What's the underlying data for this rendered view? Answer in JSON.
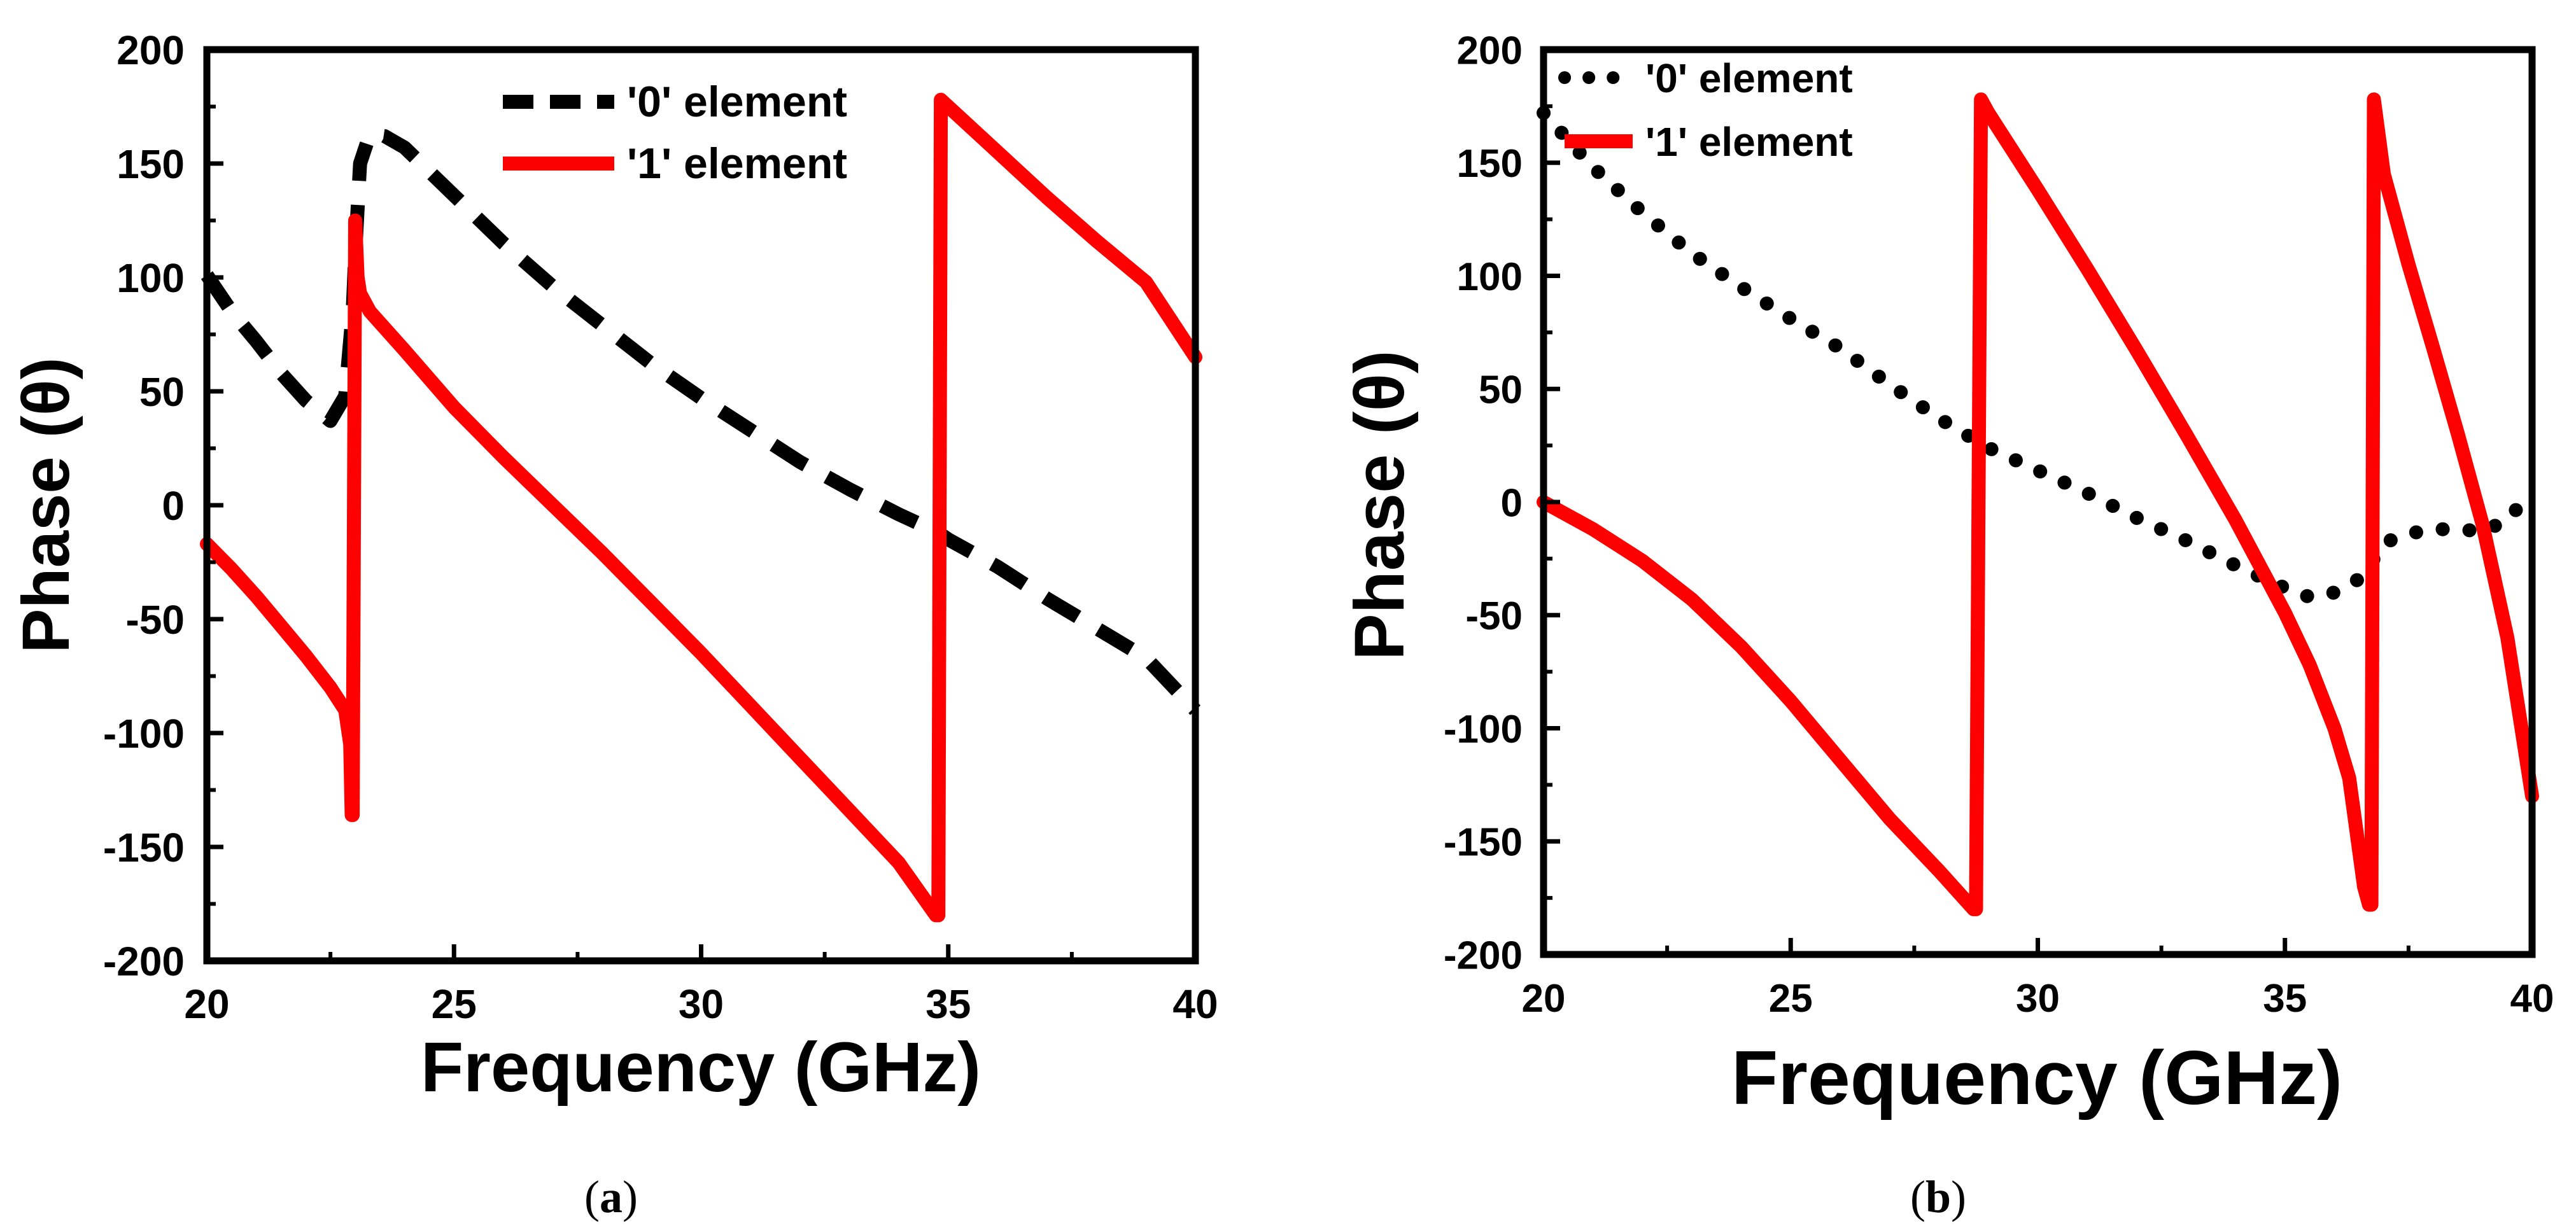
{
  "figure": {
    "captions": [
      "(a)",
      "(b)"
    ],
    "caption_letters": [
      "a",
      "b"
    ],
    "series_colors": {
      "zero": "#000000",
      "one": "#ff0000"
    }
  },
  "chart_data": [
    {
      "panel": "a",
      "type": "line",
      "title": "",
      "xlabel": "Frequency (GHz)",
      "ylabel": "Phase (θ)",
      "xlim": [
        20,
        40
      ],
      "ylim": [
        -200,
        200
      ],
      "xticks": [
        20,
        25,
        30,
        35,
        40
      ],
      "yticks": [
        -200,
        -150,
        -100,
        -50,
        0,
        50,
        100,
        150,
        200
      ],
      "grid": false,
      "legend_position": "top-right",
      "series": [
        {
          "name": "'0' element",
          "style": "dashed",
          "color": "#000000",
          "x": [
            20,
            20.5,
            21,
            21.5,
            22,
            22.5,
            22.8,
            22.95,
            23.0,
            23.05,
            23.1,
            23.3,
            23.6,
            24,
            25,
            26,
            27,
            28,
            29,
            30,
            31,
            32,
            33,
            34,
            34.8,
            35,
            36,
            37,
            38,
            39,
            40
          ],
          "y": [
            101,
            85,
            72,
            58,
            46,
            37,
            48,
            85,
            110,
            130,
            150,
            163,
            162,
            157,
            136,
            115,
            96,
            79,
            62,
            47,
            33,
            19,
            7,
            -4,
            -12,
            -15,
            -27,
            -41,
            -54,
            -67,
            -90
          ]
        },
        {
          "name": "'1' element",
          "style": "solid",
          "color": "#ff0000",
          "x": [
            20,
            20.5,
            21,
            21.5,
            22,
            22.5,
            22.8,
            22.9,
            22.93,
            22.95,
            23.0,
            23.05,
            23.1,
            23.3,
            24,
            25,
            26,
            27,
            28,
            29,
            30,
            31,
            32,
            33,
            34,
            34.75,
            34.8,
            34.85,
            35.5,
            36,
            37,
            38,
            39,
            40
          ],
          "y": [
            -17,
            -28,
            -40,
            -53,
            -66,
            -80,
            -90,
            -105,
            -136,
            -136,
            125,
            100,
            93,
            85,
            68,
            43,
            21,
            0,
            -21,
            -43,
            -65,
            -88,
            -111,
            -134,
            -157,
            -180,
            -180,
            178,
            165,
            155,
            135,
            116,
            98,
            65
          ]
        }
      ]
    },
    {
      "panel": "b",
      "type": "line",
      "title": "",
      "xlabel": "Frequency (GHz)",
      "ylabel": "Phase (θ)",
      "xlim": [
        20,
        40
      ],
      "ylim": [
        -200,
        200
      ],
      "xticks": [
        20,
        25,
        30,
        35,
        40
      ],
      "yticks": [
        -200,
        -150,
        -100,
        -50,
        0,
        50,
        100,
        150,
        200
      ],
      "grid": false,
      "legend_position": "top-left",
      "series": [
        {
          "name": "'0' element",
          "style": "dotted",
          "color": "#000000",
          "x": [
            20,
            21,
            22,
            23,
            24,
            25,
            26,
            27,
            28,
            29,
            30,
            31,
            32,
            33,
            34,
            35,
            35.5,
            36,
            36.5,
            36.8,
            37,
            37.5,
            38,
            38.5,
            39,
            39.5,
            40
          ],
          "y": [
            172,
            148,
            128,
            110,
            95,
            81,
            68,
            52,
            37,
            24,
            14,
            4,
            -7,
            -17,
            -28,
            -38,
            -42,
            -40,
            -34,
            -25,
            -18,
            -14,
            -12,
            -12,
            -13,
            -8,
            5
          ]
        },
        {
          "name": "'1' element",
          "style": "solid",
          "color": "#ff0000",
          "x": [
            20,
            21,
            22,
            23,
            24,
            25,
            26,
            27,
            28,
            28.7,
            28.75,
            28.85,
            29,
            30,
            31,
            32,
            33,
            34,
            35,
            35.5,
            36,
            36.3,
            36.6,
            36.7,
            36.75,
            36.8,
            37,
            37.5,
            38,
            38.5,
            39,
            39.5,
            40
          ],
          "y": [
            0,
            -12,
            -26,
            -43,
            -64,
            -88,
            -114,
            -140,
            -163,
            -180,
            -180,
            178,
            172,
            138,
            103,
            67,
            30,
            -8,
            -49,
            -72,
            -100,
            -122,
            -170,
            -178,
            -178,
            178,
            145,
            105,
            68,
            30,
            -10,
            -60,
            -130
          ]
        }
      ]
    }
  ]
}
